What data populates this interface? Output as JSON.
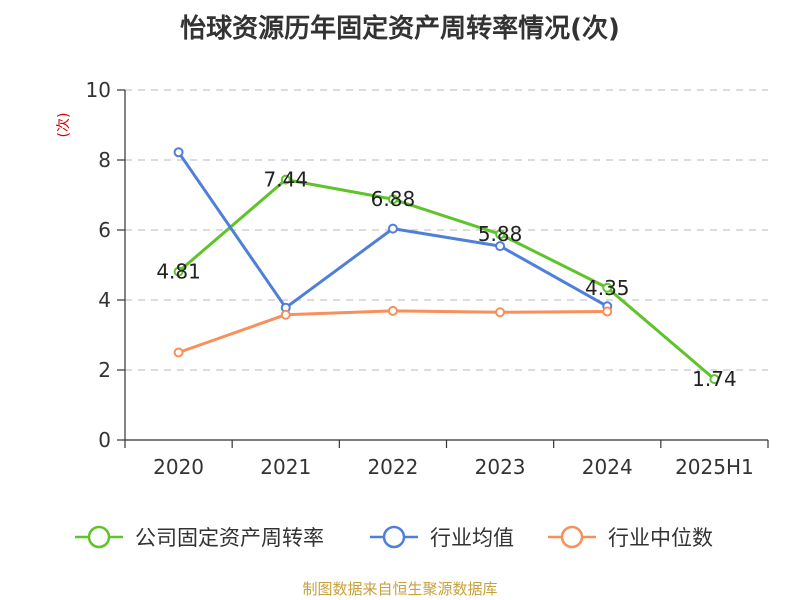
{
  "chart_data": {
    "type": "line",
    "title": "怡球资源历年固定资产周转率情况(次)",
    "ylabel": "(次)",
    "xlabel": "",
    "categories": [
      "2020",
      "2021",
      "2022",
      "2023",
      "2024",
      "2025H1"
    ],
    "ylim": [
      0,
      10
    ],
    "yticks": [
      0,
      2,
      4,
      6,
      8,
      10
    ],
    "grid": true,
    "legend_position": "bottom",
    "series": [
      {
        "name": "公司固定资产周转率",
        "color": "#5ec42a",
        "values": [
          4.81,
          7.44,
          6.88,
          5.88,
          4.35,
          1.74
        ],
        "labels": [
          "4.81",
          "7.44",
          "6.88",
          "5.88",
          "4.35",
          "1.74"
        ]
      },
      {
        "name": "行业均值",
        "color": "#4f7fd9",
        "values": [
          8.22,
          3.78,
          6.04,
          5.54,
          3.82,
          null
        ]
      },
      {
        "name": "行业中位数",
        "color": "#f7905a",
        "values": [
          2.5,
          3.58,
          3.69,
          3.65,
          3.67,
          null
        ]
      }
    ]
  },
  "source": "制图数据来自恒生聚源数据库"
}
